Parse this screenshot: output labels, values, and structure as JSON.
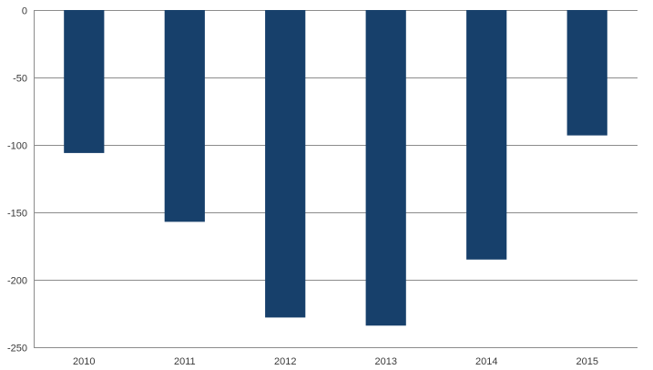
{
  "chart_data": {
    "type": "bar",
    "title": "",
    "xlabel": "",
    "ylabel": "",
    "categories": [
      "2010",
      "2011",
      "2012",
      "2013",
      "2014",
      "2015"
    ],
    "values": [
      -106,
      -157,
      -228,
      -234,
      -185,
      -93
    ],
    "ylim": [
      -250,
      0
    ],
    "yticks": [
      0,
      -50,
      -100,
      -150,
      -200,
      -250
    ],
    "ytick_labels": [
      "0",
      "-50",
      "-100",
      "-150",
      "-200",
      "-250"
    ],
    "grid": true,
    "legend": "none",
    "bar_color": "#17406b"
  }
}
